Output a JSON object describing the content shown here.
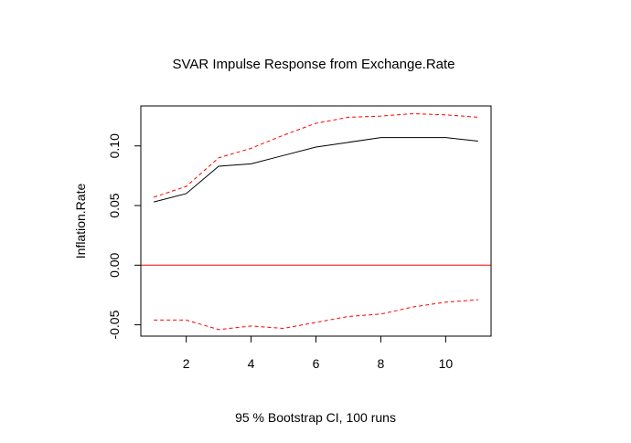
{
  "chart_data": {
    "type": "line",
    "title": "SVAR Impulse Response from Exchange.Rate",
    "xlabel": "95 % Bootstrap CI,  100 runs",
    "ylabel": "Inflation.Rate",
    "xlim": [
      0.6,
      11.4
    ],
    "ylim": [
      -0.0595,
      0.1335
    ],
    "x_ticks": [
      2,
      4,
      6,
      8,
      10
    ],
    "y_ticks": [
      -0.05,
      0.0,
      0.05,
      0.1
    ],
    "x_tick_labels": [
      "2",
      "4",
      "6",
      "8",
      "10"
    ],
    "y_tick_labels": [
      "-0.05",
      "0.00",
      "0.05",
      "0.10"
    ],
    "x": [
      1,
      2,
      3,
      4,
      5,
      6,
      7,
      8,
      9,
      10,
      11
    ],
    "series": [
      {
        "role": "response",
        "values": [
          0.053,
          0.06,
          0.083,
          0.085,
          0.092,
          0.099,
          0.103,
          0.107,
          0.107,
          0.107,
          0.104
        ],
        "color": "#000000",
        "dash": "solid"
      },
      {
        "role": "upper-ci",
        "values": [
          0.057,
          0.066,
          0.09,
          0.098,
          0.109,
          0.119,
          0.124,
          0.125,
          0.127,
          0.126,
          0.124
        ],
        "color": "#ff0000",
        "dash": "dashed"
      },
      {
        "role": "lower-ci",
        "values": [
          -0.046,
          -0.046,
          -0.054,
          -0.051,
          -0.053,
          -0.048,
          -0.043,
          -0.041,
          -0.035,
          -0.031,
          -0.029
        ],
        "color": "#ff0000",
        "dash": "dashed"
      }
    ],
    "reference_line": {
      "y": 0.0,
      "color": "#ff0000"
    },
    "grid": false,
    "legend": "none"
  }
}
